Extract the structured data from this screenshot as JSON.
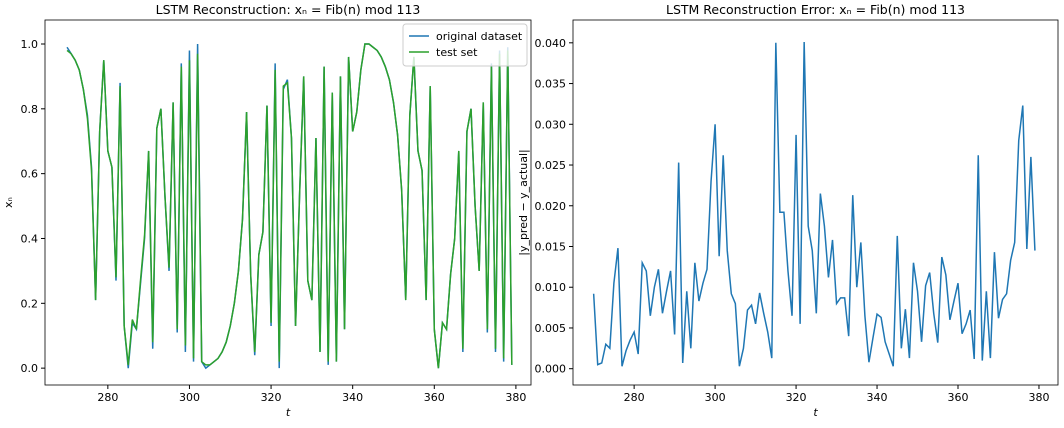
{
  "chart_data": [
    {
      "type": "line",
      "title": "LSTM Reconstruction: xₙ = Fib(n) mod 113",
      "xlabel": "t",
      "ylabel": "xₙ",
      "xlim": [
        264.6,
        383.7
      ],
      "ylim": [
        -0.052,
        1.074
      ],
      "xticks": [
        280,
        300,
        320,
        340,
        360,
        380
      ],
      "yticks": [
        {
          "value": 0,
          "label": "0.0"
        },
        {
          "value": 0.2,
          "label": "0.2"
        },
        {
          "value": 0.4,
          "label": "0.4"
        },
        {
          "value": 0.6,
          "label": "0.6"
        },
        {
          "value": 0.8,
          "label": "0.8"
        },
        {
          "value": 1,
          "label": "1.0"
        }
      ],
      "legend": "upper right",
      "x": [
        270,
        271,
        272,
        273,
        274,
        275,
        276,
        277,
        278,
        279,
        280,
        281,
        282,
        283,
        284,
        285,
        286,
        287,
        288,
        289,
        290,
        291,
        292,
        293,
        294,
        295,
        296,
        297,
        298,
        299,
        300,
        301,
        302,
        303,
        304,
        305,
        306,
        307,
        308,
        309,
        310,
        311,
        312,
        313,
        314,
        315,
        316,
        317,
        318,
        319,
        320,
        321,
        322,
        323,
        324,
        325,
        326,
        327,
        328,
        329,
        330,
        331,
        332,
        333,
        334,
        335,
        336,
        337,
        338,
        339,
        340,
        341,
        342,
        343,
        344,
        345,
        346,
        347,
        348,
        349,
        350,
        351,
        352,
        353,
        354,
        355,
        356,
        357,
        358,
        359,
        360,
        361,
        362,
        363,
        364,
        365,
        366,
        367,
        368,
        369,
        370,
        371,
        372,
        373,
        374,
        375,
        376,
        377,
        378,
        379
      ],
      "series": [
        {
          "name": "original dataset",
          "color": "#1f77b4",
          "values": [
            0.99,
            0.97,
            0.95,
            0.92,
            0.86,
            0.78,
            0.62,
            0.21,
            0.73,
            0.95,
            0.67,
            0.62,
            0.27,
            0.88,
            0.13,
            0.0,
            0.14,
            0.12,
            0.26,
            0.4,
            0.67,
            0.06,
            0.74,
            0.8,
            0.53,
            0.3,
            0.82,
            0.11,
            0.94,
            0.05,
            0.98,
            0.02,
            1.0,
            0.02,
            0.0,
            0.01,
            0.02,
            0.03,
            0.05,
            0.08,
            0.13,
            0.2,
            0.3,
            0.46,
            0.79,
            0.29,
            0.04,
            0.35,
            0.42,
            0.81,
            0.13,
            0.94,
            0.0,
            0.86,
            0.89,
            0.71,
            0.13,
            0.54,
            0.9,
            0.27,
            0.21,
            0.71,
            0.05,
            0.93,
            0.01,
            0.85,
            0.02,
            0.9,
            0.12,
            0.96,
            0.73,
            0.79,
            0.92,
            1.0,
            1.0,
            0.99,
            0.98,
            0.96,
            0.93,
            0.89,
            0.82,
            0.72,
            0.55,
            0.21,
            0.78,
            0.96,
            0.67,
            0.61,
            0.21,
            0.87,
            0.12,
            0.0,
            0.14,
            0.12,
            0.29,
            0.4,
            0.67,
            0.05,
            0.73,
            0.8,
            0.5,
            0.3,
            0.82,
            0.11,
            0.94,
            0.05,
            0.98,
            0.02,
            0.99,
            0.01
          ]
        },
        {
          "name": "test set",
          "color": "#2ca02c",
          "values": [
            0.98,
            0.97,
            0.95,
            0.92,
            0.86,
            0.77,
            0.61,
            0.21,
            0.73,
            0.95,
            0.67,
            0.62,
            0.28,
            0.87,
            0.13,
            0.01,
            0.15,
            0.12,
            0.27,
            0.41,
            0.67,
            0.08,
            0.74,
            0.8,
            0.53,
            0.31,
            0.82,
            0.12,
            0.93,
            0.07,
            0.95,
            0.03,
            0.97,
            0.02,
            0.01,
            0.01,
            0.02,
            0.03,
            0.05,
            0.08,
            0.13,
            0.2,
            0.3,
            0.46,
            0.79,
            0.29,
            0.05,
            0.35,
            0.42,
            0.81,
            0.14,
            0.92,
            0.02,
            0.87,
            0.88,
            0.71,
            0.13,
            0.54,
            0.9,
            0.27,
            0.21,
            0.71,
            0.05,
            0.93,
            0.02,
            0.85,
            0.02,
            0.9,
            0.12,
            0.96,
            0.73,
            0.79,
            0.92,
            1.0,
            1.0,
            0.99,
            0.98,
            0.96,
            0.93,
            0.89,
            0.82,
            0.72,
            0.55,
            0.21,
            0.78,
            0.96,
            0.67,
            0.61,
            0.21,
            0.87,
            0.12,
            0.0,
            0.14,
            0.12,
            0.29,
            0.4,
            0.67,
            0.06,
            0.73,
            0.8,
            0.5,
            0.3,
            0.82,
            0.12,
            0.93,
            0.06,
            0.97,
            0.03,
            0.98,
            0.01
          ]
        }
      ]
    },
    {
      "type": "line",
      "title": "LSTM Reconstruction Error: xₙ = Fib(n) mod 113",
      "xlabel": "t",
      "ylabel": "|y_pred − y_actual|",
      "xlim": [
        264.9,
        384.7
      ],
      "ylim": [
        -0.002,
        0.0428
      ],
      "xticks": [
        280,
        300,
        320,
        340,
        360,
        380
      ],
      "yticks": [
        {
          "value": 0,
          "label": "0.000"
        },
        {
          "value": 0.005,
          "label": "0.005"
        },
        {
          "value": 0.01,
          "label": "0.010"
        },
        {
          "value": 0.015,
          "label": "0.015"
        },
        {
          "value": 0.02,
          "label": "0.020"
        },
        {
          "value": 0.025,
          "label": "0.025"
        },
        {
          "value": 0.03,
          "label": "0.030"
        },
        {
          "value": 0.035,
          "label": "0.035"
        },
        {
          "value": 0.04,
          "label": "0.040"
        }
      ],
      "x": [
        270,
        271,
        272,
        273,
        274,
        275,
        276,
        277,
        278,
        279,
        280,
        281,
        282,
        283,
        284,
        285,
        286,
        287,
        288,
        289,
        290,
        291,
        292,
        293,
        294,
        295,
        296,
        297,
        298,
        299,
        300,
        301,
        302,
        303,
        304,
        305,
        306,
        307,
        308,
        309,
        310,
        311,
        312,
        313,
        314,
        315,
        316,
        317,
        318,
        319,
        320,
        321,
        322,
        323,
        324,
        325,
        326,
        327,
        328,
        329,
        330,
        331,
        332,
        333,
        334,
        335,
        336,
        337,
        338,
        339,
        340,
        341,
        342,
        343,
        344,
        345,
        346,
        347,
        348,
        349,
        350,
        351,
        352,
        353,
        354,
        355,
        356,
        357,
        358,
        359,
        360,
        361,
        362,
        363,
        364,
        365,
        366,
        367,
        368,
        369,
        370,
        371,
        372,
        373,
        374,
        375,
        376,
        377,
        378,
        379
      ],
      "series": [
        {
          "color": "#1f77b4",
          "values": [
            0.0092,
            0.0005,
            0.0007,
            0.003,
            0.0025,
            0.0105,
            0.0148,
            0.0003,
            0.0022,
            0.0035,
            0.0045,
            0.0018,
            0.013,
            0.012,
            0.0065,
            0.01,
            0.0122,
            0.0068,
            0.0095,
            0.012,
            0.0042,
            0.0253,
            0.0007,
            0.0095,
            0.0025,
            0.013,
            0.0083,
            0.0105,
            0.0122,
            0.023,
            0.03,
            0.0138,
            0.0262,
            0.0145,
            0.0092,
            0.008,
            0.0003,
            0.0025,
            0.0072,
            0.0078,
            0.0055,
            0.0093,
            0.0068,
            0.0045,
            0.0013,
            0.04,
            0.0192,
            0.0192,
            0.012,
            0.0065,
            0.0287,
            0.0055,
            0.0401,
            0.0175,
            0.0145,
            0.0068,
            0.0215,
            0.0175,
            0.0112,
            0.0158,
            0.008,
            0.0087,
            0.0087,
            0.004,
            0.0213,
            0.01,
            0.0155,
            0.0065,
            0.0008,
            0.0038,
            0.0067,
            0.0063,
            0.0033,
            0.0018,
            0.0003,
            0.0163,
            0.0025,
            0.0073,
            0.0013,
            0.013,
            0.0095,
            0.0033,
            0.0102,
            0.0118,
            0.0068,
            0.0032,
            0.0137,
            0.0115,
            0.006,
            0.0083,
            0.0105,
            0.0043,
            0.0055,
            0.0072,
            0.0012,
            0.0262,
            0.001,
            0.0095,
            0.0013,
            0.0143,
            0.0062,
            0.0085,
            0.0092,
            0.0133,
            0.0155,
            0.028,
            0.0323,
            0.0147,
            0.026,
            0.0145
          ]
        }
      ]
    }
  ]
}
